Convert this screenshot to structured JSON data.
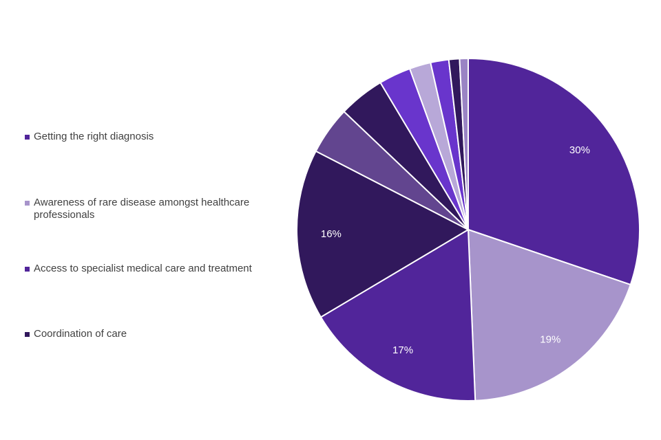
{
  "chart_data": {
    "type": "pie",
    "categories": [
      "Getting the right diagnosis",
      "Awareness of rare disease amongst healthcare professionals",
      "Access to specialist medical care and treatment",
      "Coordination of care",
      "",
      "",
      "",
      "",
      "",
      "",
      ""
    ],
    "values": [
      30,
      19,
      17,
      16,
      4.5,
      4.3,
      3,
      2,
      1.7,
      1,
      0.8
    ],
    "data_labels": [
      "30%",
      "19%",
      "17%",
      "16%",
      "",
      "",
      "",
      "",
      "",
      "",
      ""
    ],
    "colors": [
      "#51259a",
      "#a794cb",
      "#51259a",
      "#31185c",
      "#62458f",
      "#31185c",
      "#6935cc",
      "#b8a8d8",
      "#6935cc",
      "#31185c",
      "#9a84c4"
    ],
    "label_colors": [
      "#ffffff",
      "#ffffff",
      "#ffffff",
      "#ffffff"
    ],
    "legend_placement": "left",
    "title": "",
    "subtitle": ""
  },
  "legend": {
    "items": [
      {
        "label": "Getting the right diagnosis",
        "color": "#51259a"
      },
      {
        "label": "Awareness of rare disease amongst healthcare professionals",
        "color": "#a794cb"
      },
      {
        "label": "Access to specialist medical care and treatment",
        "color": "#51259a"
      },
      {
        "label": "Coordination of care",
        "color": "#31185c"
      }
    ]
  }
}
